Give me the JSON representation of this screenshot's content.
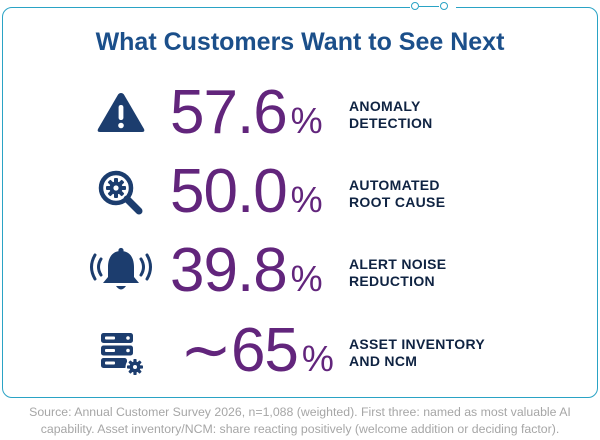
{
  "title": "What Customers Want to See Next",
  "colors": {
    "title": "#1b4f8a",
    "stat": "#62257c",
    "label": "#0f2342",
    "icon": "#1c3d6e",
    "frame": "#2aa3c5",
    "source": "#a6a6a6"
  },
  "rows": [
    {
      "icon": "warning-triangle-icon",
      "value": "57.6",
      "unit": "%",
      "label_line1": "ANOMALY",
      "label_line2": "DETECTION"
    },
    {
      "icon": "magnifier-gear-icon",
      "value": "50.0",
      "unit": "%",
      "label_line1": "AUTOMATED",
      "label_line2": "ROOT CAUSE"
    },
    {
      "icon": "ringing-bell-icon",
      "value": "39.8",
      "unit": "%",
      "label_line1": "ALERT NOISE",
      "label_line2": "REDUCTION"
    },
    {
      "icon": "server-gear-icon",
      "value": "∼65",
      "unit": "%",
      "label_line1": "ASSET INVENTORY",
      "label_line2": "AND NCM"
    }
  ],
  "source": {
    "line1": "Source: Annual Customer Survey 2026, n=1,088 (weighted). First three: named as most valuable AI",
    "line2": "capability. Asset inventory/NCM: share reacting positively (welcome addition or deciding factor)."
  }
}
